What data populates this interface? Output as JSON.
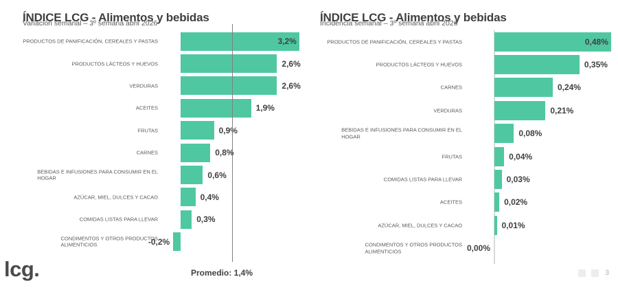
{
  "colors": {
    "bar": "#4fc8a2",
    "title": "#3f3f3f",
    "subtitle": "#595959",
    "label": "#595959",
    "value": "#404040",
    "avgline": "#7f7f7f",
    "baseline": "#d9d9d9"
  },
  "footer": {
    "logo": "lcg.",
    "page_number": "3"
  },
  "chart_data": [
    {
      "type": "bar",
      "orientation": "horizontal",
      "title": "ÍNDICE LCG - Alimentos y bebidas",
      "subtitle": "Variación semanal – 3º semana abril 2026",
      "categories": [
        "PRODUCTOS DE PANIFICACIÓN, CEREALES Y PASTAS",
        "PRODUCTOS LÁCTEOS Y HUEVOS",
        "VERDURAS",
        "ACEITES",
        "FRUTAS",
        "CARNES",
        "BEBIDAS E INFUSIONES PARA CONSUMIR EN EL\nHOGAR",
        "AZÚCAR, MIEL, DULCES Y CACAO",
        "COMIDAS LISTAS PARA LLEVAR",
        "CONDIMENTOS Y OTROS PRODUCTOS\nALIMENTICIOS"
      ],
      "values": [
        3.2,
        2.6,
        2.6,
        1.9,
        0.9,
        0.8,
        0.6,
        0.4,
        0.3,
        -0.2
      ],
      "value_labels": [
        "3,2%",
        "2,6%",
        "2,6%",
        "1,9%",
        "0,9%",
        "0,8%",
        "0,6%",
        "0,4%",
        "0,3%",
        "-0,2%"
      ],
      "average": 1.4,
      "average_label": "Promedio: 1,4%",
      "xlim": [
        -0.4,
        3.4
      ],
      "grid": false,
      "legend": false
    },
    {
      "type": "bar",
      "orientation": "horizontal",
      "title": "ÍNDICE LCG - Alimentos y bebidas",
      "subtitle": "Incidencia semanal – 3º semana abril 2026",
      "categories": [
        "PRODUCTOS DE PANIFICACIÓN, CEREALES Y PASTAS",
        "PRODUCTOS LÁCTEOS Y HUEVOS",
        "CARNES",
        "VERDURAS",
        "BEBIDAS E INFUSIONES PARA CONSUMIR EN EL\nHOGAR",
        "FRUTAS",
        "COMIDAS LISTAS PARA LLEVAR",
        "ACEITES",
        "AZÚCAR, MIEL, DULCES Y CACAO",
        "CONDIMENTOS Y OTROS PRODUCTOS\nALIMENTICIOS"
      ],
      "values": [
        0.48,
        0.35,
        0.24,
        0.21,
        0.08,
        0.04,
        0.03,
        0.02,
        0.01,
        0.0
      ],
      "value_labels": [
        "0,48%",
        "0,35%",
        "0,24%",
        "0,21%",
        "0,08%",
        "0,04%",
        "0,03%",
        "0,02%",
        "0,01%",
        "0,00%"
      ],
      "xlim": [
        0,
        0.5
      ],
      "grid": false,
      "legend": false
    }
  ]
}
